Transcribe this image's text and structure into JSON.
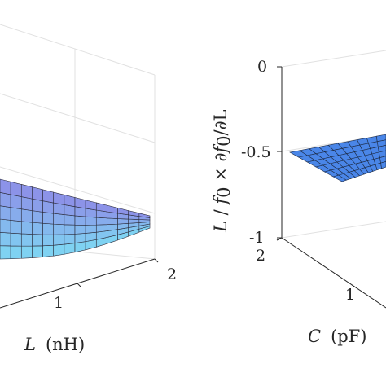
{
  "chart_data": [
    {
      "type": "surface",
      "panel": "left",
      "xlabel_var": "L",
      "xlabel_unit": "(nH)",
      "x_ticks": [
        "1",
        "2"
      ],
      "xlim": [
        0,
        2
      ],
      "zlabel": "",
      "surface_color_top": "#8f86e6",
      "surface_color_bottom": "#7fd2f2",
      "grid_on": true
    },
    {
      "type": "surface",
      "panel": "right",
      "ylabel_var": "C",
      "ylabel_unit": "(pF)",
      "y_ticks": [
        "2",
        "1"
      ],
      "zlabel": "L / f0 × ∂f0/∂L",
      "zlabel_parts": {
        "L": "L",
        "slash": " / ",
        "f": "f",
        "sub0": "0",
        "times": " × ∂",
        "f2": "f",
        "sub0b": "0",
        "end": "/∂L"
      },
      "z_ticks": [
        "0",
        "-0.5",
        "-1"
      ],
      "zlim": [
        -1,
        0
      ],
      "surface_value": -0.5,
      "surface_color": "#4a86e8",
      "grid_on": true
    }
  ]
}
